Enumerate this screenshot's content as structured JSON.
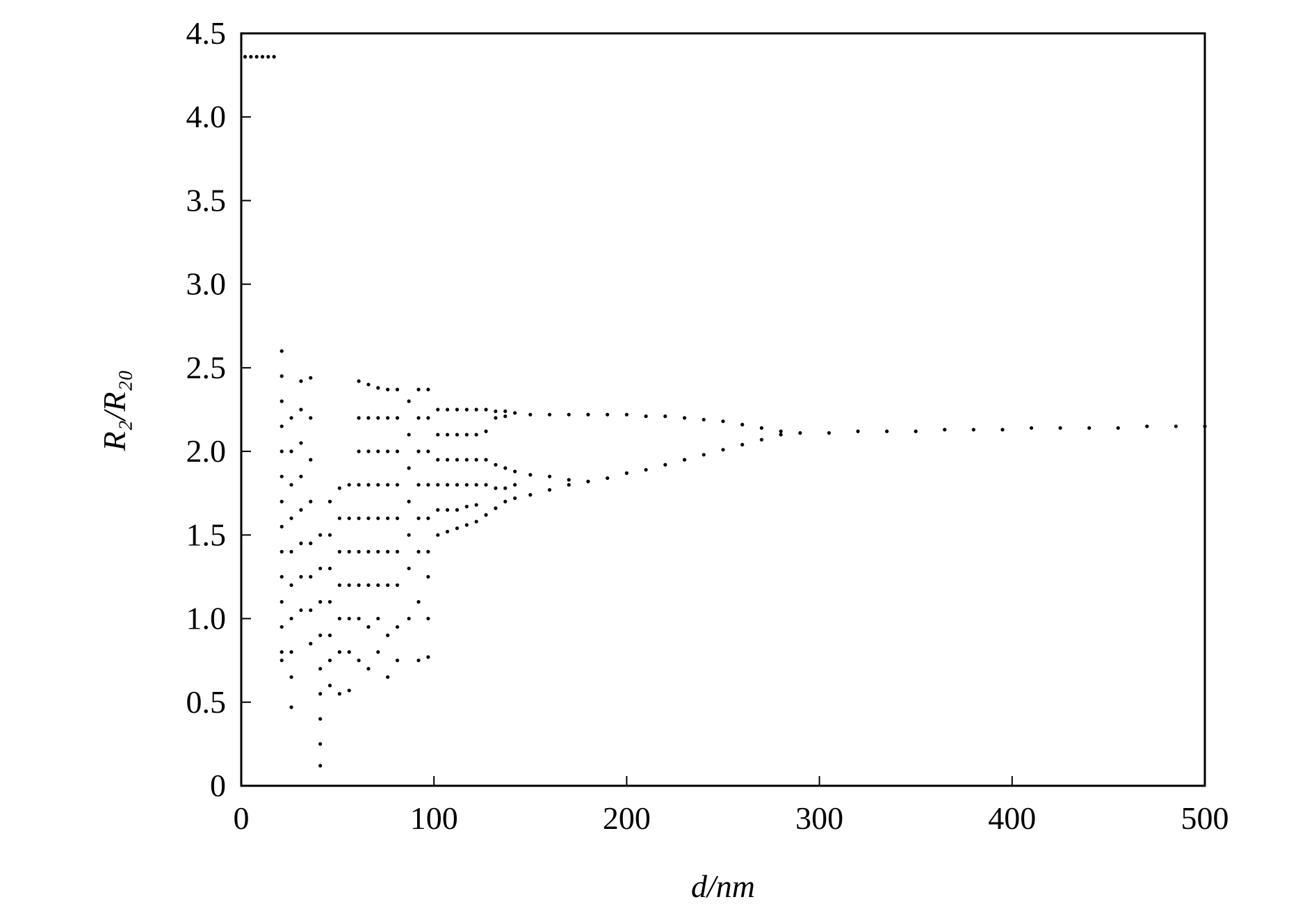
{
  "chart_data": {
    "type": "scatter",
    "x_label": "d/nm",
    "y_label": "R₂/R₂₀",
    "xlim": [
      0,
      500
    ],
    "xticks": [
      0,
      100,
      200,
      300,
      400,
      500
    ],
    "ylim": [
      0,
      4.5
    ],
    "yticks": [
      0,
      0.5,
      {
        "value": 1,
        "label": "1.0"
      },
      1.5,
      {
        "value": 2,
        "label": "2.0"
      },
      2.5,
      {
        "value": 3,
        "label": "3.0"
      },
      3.5,
      {
        "value": 4,
        "label": "4.0"
      },
      4.5
    ],
    "color": "#000000",
    "x": [
      2,
      5,
      8,
      11,
      14,
      17,
      21,
      21,
      21,
      21,
      21,
      21,
      21,
      21,
      21,
      21,
      21,
      21,
      21,
      21,
      26,
      26,
      26,
      26,
      26,
      26,
      26,
      26,
      26,
      26,
      31,
      31,
      31,
      31,
      31,
      31,
      31,
      31,
      36,
      36,
      36,
      36,
      36,
      36,
      36,
      36,
      41,
      41,
      41,
      41,
      41,
      41,
      41,
      41,
      41,
      46,
      46,
      46,
      46,
      46,
      46,
      46,
      51,
      51,
      51,
      51,
      51,
      51,
      51,
      56,
      56,
      56,
      56,
      56,
      56,
      56,
      61,
      61,
      61,
      61,
      61,
      61,
      61,
      61,
      61,
      66,
      66,
      66,
      66,
      66,
      66,
      66,
      66,
      66,
      71,
      71,
      71,
      71,
      71,
      71,
      71,
      71,
      71,
      76,
      76,
      76,
      76,
      76,
      76,
      76,
      76,
      76,
      81,
      81,
      81,
      81,
      81,
      81,
      81,
      81,
      81,
      87,
      87,
      87,
      87,
      87,
      87,
      87,
      92,
      92,
      92,
      92,
      92,
      92,
      92,
      92,
      97,
      97,
      97,
      97,
      97,
      97,
      97,
      97,
      97,
      102,
      102,
      102,
      102,
      102,
      102,
      107,
      107,
      107,
      107,
      107,
      107,
      112,
      112,
      112,
      112,
      112,
      112,
      117,
      117,
      117,
      117,
      117,
      117,
      122,
      122,
      122,
      122,
      122,
      122,
      127,
      127,
      127,
      127,
      127,
      132,
      132,
      132,
      132,
      132,
      137,
      137,
      137,
      137,
      137,
      142,
      142,
      142,
      142,
      150,
      160,
      170,
      180,
      190,
      200,
      210,
      220,
      230,
      240,
      250,
      260,
      270,
      280,
      150,
      160,
      170,
      150,
      160,
      170,
      180,
      190,
      200,
      210,
      220,
      230,
      240,
      250,
      260,
      270,
      280,
      290,
      305,
      320,
      335,
      350,
      365,
      380,
      395,
      410,
      425,
      440,
      455,
      470,
      485,
      500
    ],
    "values": [
      4.36,
      4.36,
      4.36,
      4.36,
      4.36,
      4.36,
      2.6,
      2.45,
      2.3,
      2.15,
      2.0,
      1.85,
      1.7,
      1.55,
      1.4,
      1.25,
      1.1,
      0.95,
      0.8,
      0.75,
      2.2,
      2.0,
      1.8,
      1.6,
      1.4,
      1.2,
      1.0,
      0.8,
      0.65,
      0.47,
      2.42,
      2.25,
      2.05,
      1.85,
      1.65,
      1.45,
      1.25,
      1.05,
      2.44,
      2.2,
      1.95,
      1.7,
      1.45,
      1.25,
      1.05,
      0.85,
      1.5,
      1.3,
      1.1,
      0.9,
      0.7,
      0.55,
      0.4,
      0.25,
      0.12,
      1.7,
      1.5,
      1.3,
      1.1,
      0.9,
      0.75,
      0.6,
      1.78,
      1.6,
      1.4,
      1.2,
      1.0,
      0.8,
      0.55,
      1.8,
      1.6,
      1.4,
      1.2,
      1.0,
      0.8,
      0.57,
      2.42,
      2.2,
      2.0,
      1.8,
      1.6,
      1.4,
      1.2,
      1.0,
      0.75,
      2.4,
      2.2,
      2.0,
      1.8,
      1.6,
      1.4,
      1.2,
      0.95,
      0.7,
      2.38,
      2.2,
      2.0,
      1.8,
      1.6,
      1.4,
      1.2,
      1.0,
      0.8,
      2.37,
      2.2,
      2.0,
      1.8,
      1.6,
      1.4,
      1.2,
      0.9,
      0.65,
      2.37,
      2.2,
      2.0,
      1.8,
      1.6,
      1.4,
      1.2,
      0.95,
      0.75,
      2.3,
      2.1,
      1.9,
      1.7,
      1.5,
      1.3,
      1.0,
      2.37,
      2.2,
      2.0,
      1.8,
      1.6,
      1.4,
      1.1,
      0.75,
      2.37,
      2.2,
      2.0,
      1.8,
      1.6,
      1.4,
      1.25,
      1.0,
      0.77,
      2.25,
      2.1,
      1.95,
      1.8,
      1.65,
      1.5,
      2.25,
      2.1,
      1.95,
      1.8,
      1.65,
      1.52,
      2.25,
      2.1,
      1.95,
      1.8,
      1.65,
      1.54,
      2.25,
      2.1,
      1.95,
      1.8,
      1.67,
      1.56,
      2.25,
      2.1,
      1.95,
      1.8,
      1.68,
      1.58,
      2.25,
      2.12,
      1.95,
      1.8,
      1.62,
      2.24,
      2.2,
      1.92,
      1.78,
      1.66,
      2.24,
      2.21,
      1.9,
      1.78,
      1.7,
      2.23,
      1.88,
      1.8,
      1.72,
      2.22,
      2.22,
      2.22,
      2.22,
      2.22,
      2.22,
      2.21,
      2.21,
      2.2,
      2.19,
      2.18,
      2.16,
      2.14,
      2.12,
      1.86,
      1.85,
      1.83,
      1.74,
      1.77,
      1.8,
      1.82,
      1.84,
      1.87,
      1.89,
      1.92,
      1.95,
      1.98,
      2.01,
      2.04,
      2.07,
      2.1,
      2.11,
      2.11,
      2.12,
      2.12,
      2.12,
      2.13,
      2.13,
      2.13,
      2.14,
      2.14,
      2.14,
      2.14,
      2.15,
      2.15,
      2.15
    ]
  }
}
